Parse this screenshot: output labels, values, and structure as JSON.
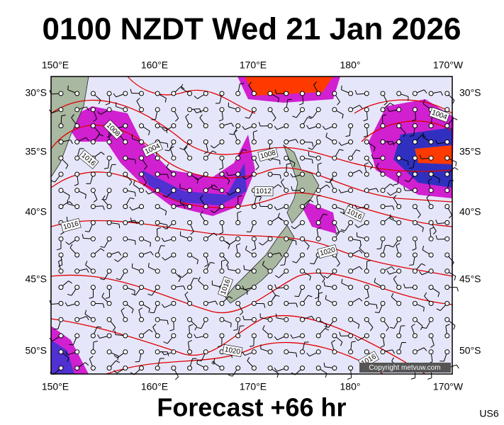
{
  "header": {
    "title": "0100 NZDT Wed 21 Jan 2026"
  },
  "map": {
    "lon_labels_top": [
      "150°E",
      "160°E",
      "170°E",
      "180°",
      "170°W"
    ],
    "lon_labels_bottom": [
      "150°E",
      "160°E",
      "170°E",
      "180°",
      "170°W"
    ],
    "lat_labels_left": [
      "30°S",
      "35°S",
      "40°S",
      "45°S",
      "50°S"
    ],
    "lat_labels_right": [
      "30°S",
      "35°S",
      "40°S",
      "45°S",
      "50°S"
    ],
    "isobar_labels": [
      "1008",
      "1016",
      "1004",
      "1008",
      "1012",
      "1016",
      "1016",
      "1020",
      "1016",
      "1020",
      "1016",
      "1004"
    ],
    "copyright": "Copyright metvuw.com"
  },
  "footer": {
    "forecast": "Forecast +66 hr",
    "code": "US6"
  }
}
